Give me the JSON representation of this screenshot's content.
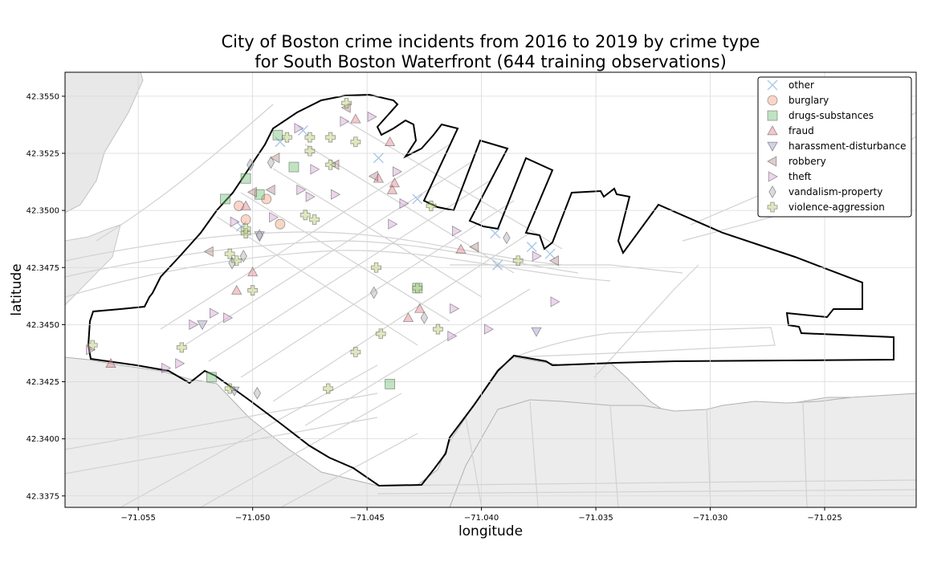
{
  "chart_data": {
    "type": "scatter",
    "title_line1": "City of Boston crime incidents from 2016 to 2019 by crime type",
    "title_line2": "for South Boston Waterfront (644 training observations)",
    "xlabel": "longitude",
    "ylabel": "latitude",
    "xlim": [
      -71.0582,
      -71.021
    ],
    "ylim": [
      42.337,
      42.35605
    ],
    "xticks": [
      -71.055,
      -71.05,
      -71.045,
      -71.04,
      -71.035,
      -71.03,
      -71.025
    ],
    "xtick_labels": [
      "−71.055",
      "−71.050",
      "−71.045",
      "−71.040",
      "−71.035",
      "−71.030",
      "−71.025"
    ],
    "yticks": [
      42.3375,
      42.34,
      42.3425,
      42.345,
      42.3475,
      42.35,
      42.3525,
      42.355
    ],
    "ytick_labels": [
      "42.3375",
      "42.3400",
      "42.3425",
      "42.3450",
      "42.3475",
      "42.3500",
      "42.3525",
      "42.3550"
    ],
    "grid": true,
    "legend_position": "top-right",
    "series": [
      {
        "name": "other",
        "marker": "x",
        "color": "#8db3e2",
        "points": [
          [
            -71.0478,
            42.3535
          ],
          [
            -71.0445,
            42.3523
          ],
          [
            -71.0428,
            42.3505
          ],
          [
            -71.0394,
            42.349
          ],
          [
            -71.0393,
            42.3476
          ],
          [
            -71.0378,
            42.3484
          ],
          [
            -71.037,
            42.3481
          ],
          [
            -71.0488,
            42.353
          ],
          [
            -71.0505,
            42.3493
          ]
        ]
      },
      {
        "name": "burglary",
        "marker": "o",
        "color": "#f4a582",
        "points": [
          [
            -71.0503,
            42.3496
          ],
          [
            -71.0488,
            42.3494
          ],
          [
            -71.0506,
            42.3502
          ],
          [
            -71.0494,
            42.3505
          ]
        ]
      },
      {
        "name": "drugs-substances",
        "marker": "s",
        "color": "#74c476",
        "points": [
          [
            -71.0512,
            42.3505
          ],
          [
            -71.0497,
            42.3507
          ],
          [
            -71.044,
            42.3424
          ],
          [
            -71.0518,
            42.3427
          ],
          [
            -71.0482,
            42.3519
          ],
          [
            -71.0489,
            42.3533
          ],
          [
            -71.0428,
            42.3466
          ],
          [
            -71.0503,
            42.3514
          ]
        ]
      },
      {
        "name": "fraud",
        "marker": "^",
        "color": "#e7838d",
        "points": [
          [
            -71.0455,
            42.354
          ],
          [
            -71.044,
            42.353
          ],
          [
            -71.0445,
            42.3514
          ],
          [
            -71.0438,
            42.3512
          ],
          [
            -71.0439,
            42.3509
          ],
          [
            -71.0409,
            42.3483
          ],
          [
            -71.05,
            42.3473
          ],
          [
            -71.0507,
            42.3465
          ],
          [
            -71.0427,
            42.3457
          ],
          [
            -71.0432,
            42.3453
          ],
          [
            -71.0562,
            42.3433
          ],
          [
            -71.0503,
            42.3502
          ]
        ]
      },
      {
        "name": "harassment-disturbance",
        "marker": "v",
        "color": "#9e9ac8",
        "points": [
          [
            -71.0376,
            42.3447
          ],
          [
            -71.0522,
            42.345
          ],
          [
            -71.0508,
            42.3421
          ],
          [
            -71.0497,
            42.3489
          ]
        ]
      },
      {
        "name": "robbery",
        "marker": "<",
        "color": "#bc8f8f",
        "points": [
          [
            -71.0447,
            42.3515
          ],
          [
            -71.0464,
            42.352
          ],
          [
            -71.0492,
            42.3509
          ],
          [
            -71.049,
            42.3523
          ],
          [
            -71.05,
            42.3508
          ],
          [
            -71.0519,
            42.3482
          ],
          [
            -71.0459,
            42.3545
          ],
          [
            -71.0403,
            42.3484
          ],
          [
            -71.0368,
            42.3478
          ]
        ]
      },
      {
        "name": "theft",
        "marker": ">",
        "color": "#d6a2d6",
        "points": [
          [
            -71.048,
            42.3536
          ],
          [
            -71.046,
            42.3539
          ],
          [
            -71.0448,
            42.3541
          ],
          [
            -71.0473,
            42.3518
          ],
          [
            -71.0437,
            42.3517
          ],
          [
            -71.0479,
            42.3509
          ],
          [
            -71.0475,
            42.3506
          ],
          [
            -71.0464,
            42.3507
          ],
          [
            -71.0439,
            42.3494
          ],
          [
            -71.0411,
            42.3491
          ],
          [
            -71.0376,
            42.348
          ],
          [
            -71.0508,
            42.3495
          ],
          [
            -71.0491,
            42.3497
          ],
          [
            -71.0517,
            42.3455
          ],
          [
            -71.0511,
            42.3453
          ],
          [
            -71.0526,
            42.345
          ],
          [
            -71.0412,
            42.3457
          ],
          [
            -71.0413,
            42.3445
          ],
          [
            -71.0397,
            42.3448
          ],
          [
            -71.0532,
            42.3433
          ],
          [
            -71.0538,
            42.3431
          ],
          [
            -71.0571,
            42.3439
          ],
          [
            -71.0368,
            42.346
          ],
          [
            -71.0434,
            42.3503
          ]
        ]
      },
      {
        "name": "vandalism-property",
        "marker": "d",
        "color": "#b0b0b8",
        "points": [
          [
            -71.0492,
            42.3521
          ],
          [
            -71.0498,
            42.342
          ],
          [
            -71.0425,
            42.3453
          ],
          [
            -71.0504,
            42.348
          ],
          [
            -71.0509,
            42.3477
          ],
          [
            -71.0497,
            42.3489
          ],
          [
            -71.0447,
            42.3464
          ],
          [
            -71.0501,
            42.352
          ],
          [
            -71.0389,
            42.3488
          ]
        ]
      },
      {
        "name": "violence-aggression",
        "marker": "P",
        "color": "#b5cc6e",
        "points": [
          [
            -71.0485,
            42.3532
          ],
          [
            -71.0475,
            42.3532
          ],
          [
            -71.0466,
            42.3532
          ],
          [
            -71.0455,
            42.353
          ],
          [
            -71.0475,
            42.3526
          ],
          [
            -71.0446,
            42.3475
          ],
          [
            -71.0428,
            42.3466
          ],
          [
            -71.051,
            42.3422
          ],
          [
            -71.0467,
            42.3422
          ],
          [
            -71.0444,
            42.3446
          ],
          [
            -71.0455,
            42.3438
          ],
          [
            -71.057,
            42.3441
          ],
          [
            -71.0531,
            42.344
          ],
          [
            -71.0422,
            42.3502
          ],
          [
            -71.05,
            42.3465
          ],
          [
            -71.0503,
            42.349
          ],
          [
            -71.0507,
            42.3478
          ],
          [
            -71.0503,
            42.3492
          ],
          [
            -71.0466,
            42.352
          ],
          [
            -71.0477,
            42.3498
          ],
          [
            -71.0473,
            42.3496
          ],
          [
            -71.0384,
            42.3478
          ],
          [
            -71.0419,
            42.3448
          ],
          [
            -71.051,
            42.3481
          ],
          [
            -71.0459,
            42.3547
          ]
        ]
      }
    ]
  }
}
